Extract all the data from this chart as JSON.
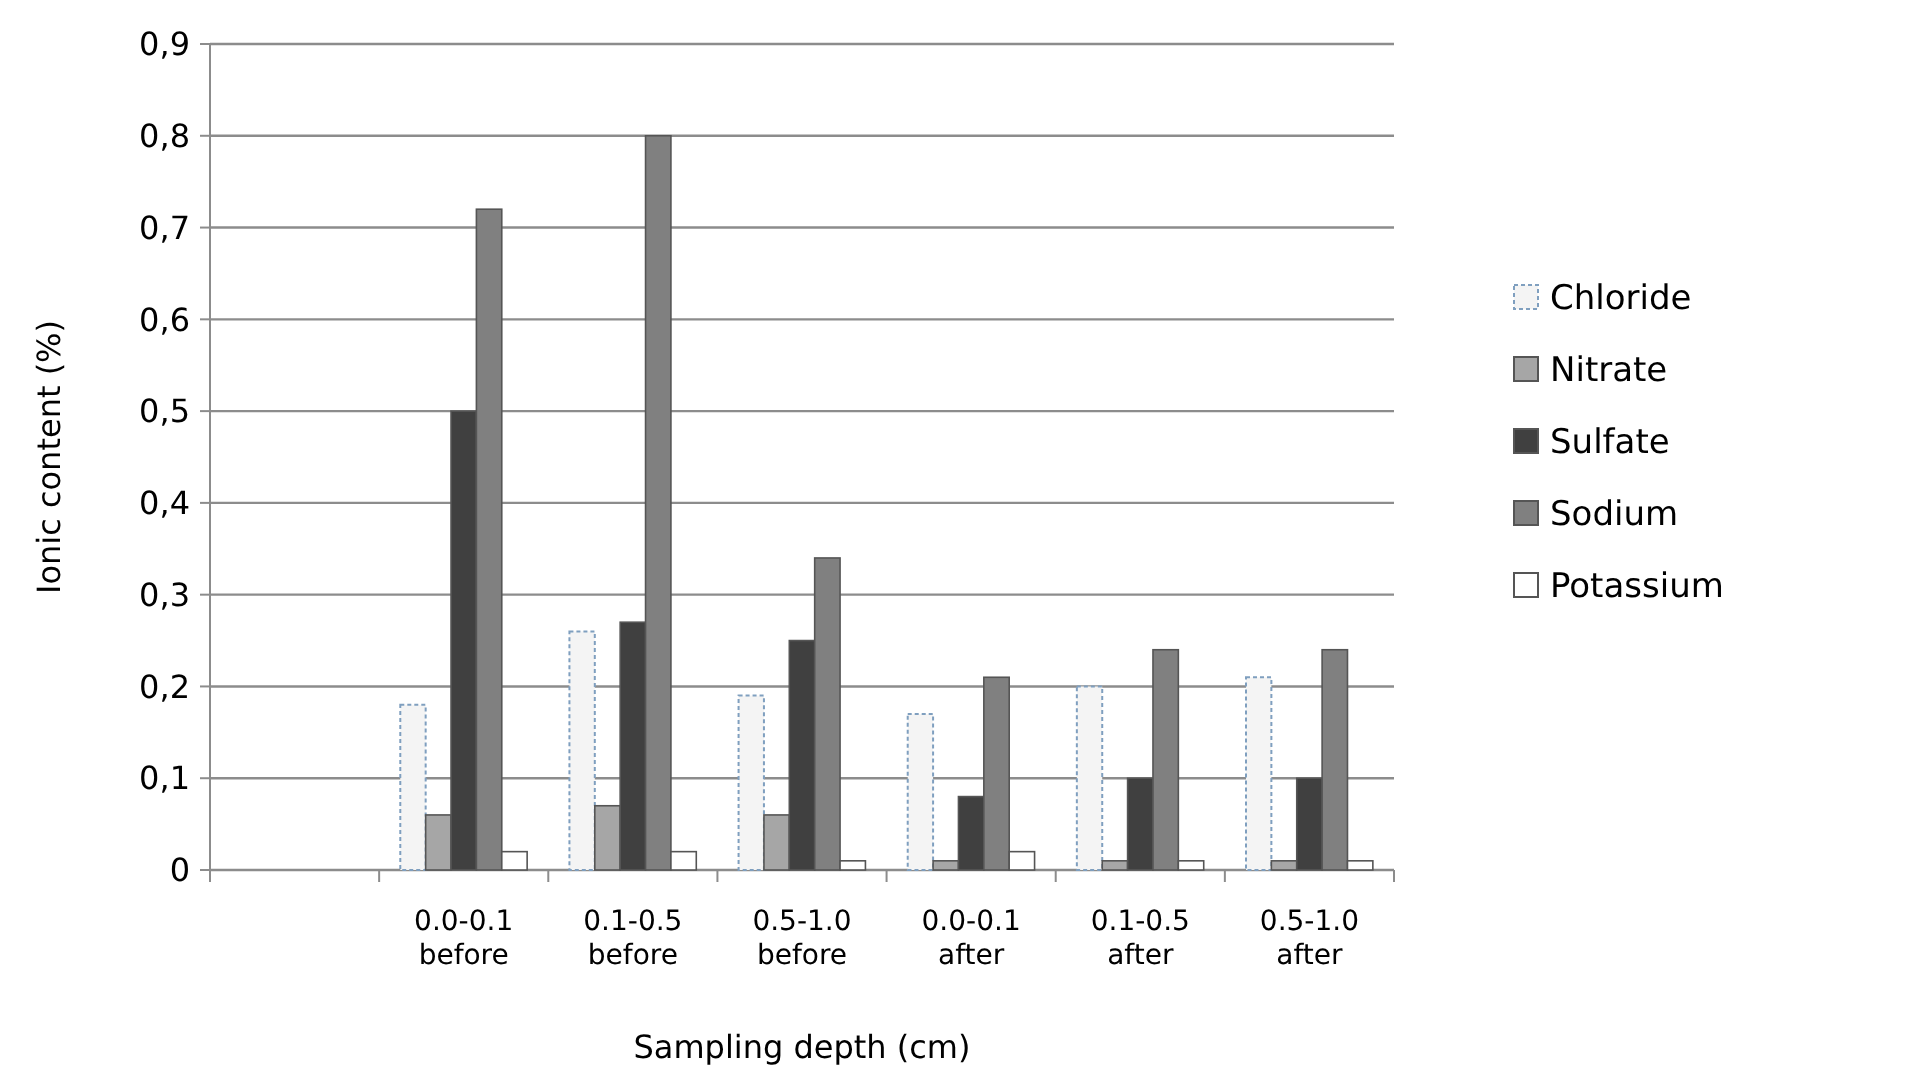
{
  "chart_data": {
    "type": "bar",
    "xlabel": "Sampling depth (cm)",
    "ylabel": "Ionic content (%)",
    "categories": [
      null,
      "0.0-0.1\nbefore",
      "0.1-0.5\nbefore",
      "0.5-1.0\nbefore",
      "0.0-0.1\nafter",
      "0.1-0.5\nafter",
      "0.5-1.0\nafter"
    ],
    "series": [
      {
        "name": "Chloride",
        "color": "#f4f4f4",
        "values": [
          null,
          0.18,
          0.26,
          0.19,
          0.17,
          0.2,
          0.21
        ]
      },
      {
        "name": "Nitrate",
        "color": "#a6a6a6",
        "values": [
          null,
          0.06,
          0.07,
          0.06,
          0.01,
          0.01,
          0.01
        ]
      },
      {
        "name": "Sulfate",
        "color": "#404040",
        "values": [
          null,
          0.5,
          0.27,
          0.25,
          0.08,
          0.1,
          0.1
        ]
      },
      {
        "name": "Sodium",
        "color": "#808080",
        "values": [
          null,
          0.72,
          0.8,
          0.34,
          0.21,
          0.24,
          0.24
        ]
      },
      {
        "name": "Potassium",
        "color": "#ffffff",
        "values": [
          null,
          0.02,
          0.02,
          0.01,
          0.02,
          0.01,
          0.01
        ]
      }
    ],
    "ylim": [
      0,
      0.9
    ],
    "yticks": [
      {
        "value": 0,
        "label": "0"
      },
      {
        "value": 0.1,
        "label": "0,1"
      },
      {
        "value": 0.2,
        "label": "0,2"
      },
      {
        "value": 0.3,
        "label": "0,3"
      },
      {
        "value": 0.4,
        "label": "0,4"
      },
      {
        "value": 0.5,
        "label": "0,5"
      },
      {
        "value": 0.6,
        "label": "0,6"
      },
      {
        "value": 0.7,
        "label": "0,7"
      },
      {
        "value": 0.8,
        "label": "0,8"
      },
      {
        "value": 0.9,
        "label": "0,9"
      }
    ],
    "grid": "y",
    "legend": "right"
  }
}
